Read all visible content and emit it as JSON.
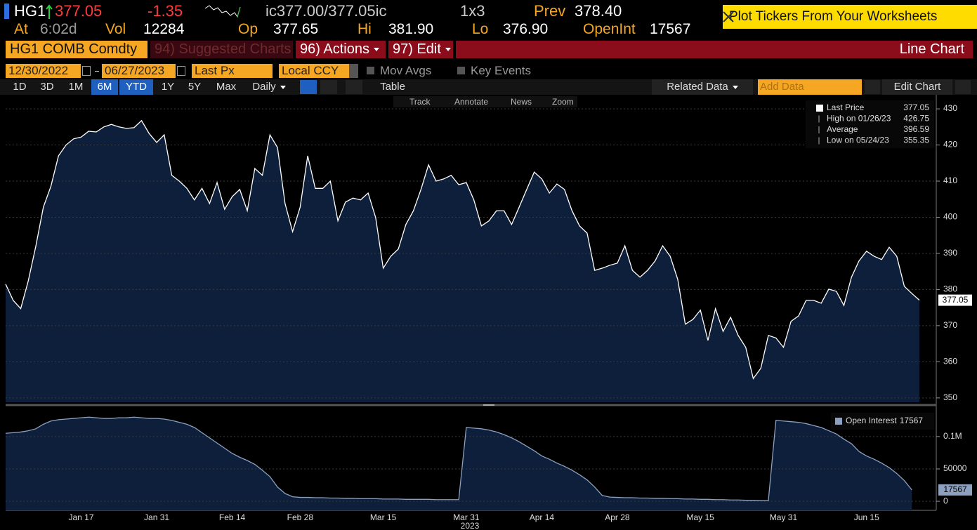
{
  "header": {
    "ticker": "HG1",
    "last": "377.05",
    "change": "-1.35",
    "quote": "ic377.00/377.05ic",
    "size": "1x3",
    "prev_label": "Prev",
    "prev": "378.40",
    "at_label": "At",
    "time": "6:02d",
    "vol_label": "Vol",
    "vol": "12284",
    "op_label": "Op",
    "op": "377.65",
    "hi_label": "Hi",
    "hi": "381.90",
    "lo_label": "Lo",
    "lo": "376.90",
    "oi_label": "OpenInt",
    "oi": "17567"
  },
  "banner": "Plot Tickers From Your Worksheets",
  "menu": {
    "security": "HG1 COMB Comdty",
    "suggested": "94) Suggested Charts",
    "actions": "96) Actions",
    "edit": "97) Edit",
    "chart_type": "Line Chart"
  },
  "controls": {
    "start_date": "12/30/2022",
    "end_date": "06/27/2023",
    "field": "Last Px",
    "currency": "Local CCY",
    "mov_avgs": "Mov Avgs",
    "key_events": "Key Events"
  },
  "periods": [
    "1D",
    "3D",
    "1M",
    "6M",
    "YTD",
    "1Y",
    "5Y",
    "Max"
  ],
  "frequency": "Daily",
  "table": "Table",
  "related_data": "Related Data",
  "add_data": "Add Data",
  "edit_chart": "Edit Chart",
  "tools": [
    "Track",
    "Annotate",
    "News",
    "Zoom"
  ],
  "chart_data": [
    {
      "type": "area",
      "series": [
        {
          "name": "Last Price",
          "color": "#ffffff",
          "fill": "#0d1f3b",
          "values": [
            381.5,
            377,
            374.7,
            382.4,
            392,
            402.8,
            408.6,
            417,
            420,
            421.7,
            422.2,
            423.8,
            423.6,
            425,
            425.7,
            425,
            424.6,
            424.8,
            426.75,
            423.2,
            420.7,
            422.8,
            411.6,
            410,
            408,
            404.8,
            408,
            403.8,
            409.6,
            402.2,
            405.7,
            407.7,
            401.8,
            413.5,
            411.6,
            422.8,
            419.3,
            403.8,
            396,
            402.8,
            417,
            408,
            408,
            410,
            399,
            404.2,
            405.3,
            404.8,
            406.7,
            399.9,
            385.9,
            389.2,
            391.2,
            398,
            401.8,
            407.7,
            414.5,
            410,
            410.6,
            411.6,
            409,
            409.6,
            404.8,
            397.6,
            399,
            401.8,
            401.8,
            398,
            402.8,
            407.7,
            412.5,
            410.6,
            406.7,
            409.2,
            407.7,
            401.8,
            397.6,
            395.6,
            385.3,
            385.9,
            386.7,
            387.3,
            392.1,
            385.3,
            383.4,
            385.3,
            387.9,
            392.1,
            389.2,
            382.8,
            370.4,
            371.7,
            374.3,
            365.9,
            374.7,
            368.4,
            372.3,
            367.3,
            364,
            355.35,
            358.2,
            367.3,
            366.6,
            364,
            371.2,
            372.7,
            377,
            377,
            376.2,
            380.1,
            379.5,
            375.6,
            383.4,
            387.9,
            390.6,
            389.2,
            388.3,
            391.7,
            389.2,
            380.9,
            378.9,
            377.05
          ]
        }
      ],
      "stats": [
        {
          "label": "High on 01/26/23",
          "value": 426.75
        },
        {
          "label": "Average",
          "value": 396.59
        },
        {
          "label": "Low on 05/24/23",
          "value": 355.35
        }
      ],
      "ylim": [
        348.8,
        433.9
      ],
      "yticks": [
        350,
        360,
        370,
        380,
        390,
        400,
        410,
        420,
        430
      ],
      "grid": true
    },
    {
      "type": "area",
      "categories": [
        null,
        null,
        null,
        null,
        null,
        null,
        null,
        null,
        null,
        null,
        "Jan 17",
        null,
        null,
        null,
        null,
        null,
        null,
        null,
        null,
        null,
        "Jan 31",
        null,
        null,
        null,
        null,
        null,
        null,
        null,
        null,
        null,
        "Feb 14",
        null,
        null,
        null,
        null,
        null,
        null,
        null,
        null,
        "Feb 28",
        null,
        null,
        null,
        null,
        null,
        null,
        null,
        null,
        null,
        null,
        "Mar 15",
        null,
        null,
        null,
        null,
        null,
        null,
        null,
        null,
        null,
        null,
        "Mar 31",
        null,
        null,
        null,
        null,
        null,
        null,
        null,
        null,
        null,
        "Apr 14",
        null,
        null,
        null,
        null,
        null,
        null,
        null,
        null,
        null,
        "Apr 28",
        null,
        null,
        null,
        null,
        null,
        null,
        null,
        null,
        null,
        null,
        "May 15",
        null,
        null,
        null,
        null,
        null,
        null,
        null,
        null,
        null,
        null,
        "May 31",
        null,
        null,
        null,
        null,
        null,
        null,
        null,
        null,
        null,
        null,
        "Jun 15",
        null,
        null,
        null,
        null,
        null,
        null,
        null
      ],
      "year_label": "2023",
      "series": [
        {
          "name": "Open Interest",
          "color": "#8da0c0",
          "fill": "#0d1f3b",
          "values": [
            105000,
            106000,
            107000,
            109000,
            112000,
            119000,
            124000,
            126000,
            127000,
            128000,
            129000,
            130000,
            129000,
            128000,
            128000,
            129000,
            129000,
            130000,
            129000,
            128000,
            128000,
            127000,
            125000,
            122000,
            119000,
            114000,
            106000,
            98000,
            90000,
            82000,
            74000,
            68000,
            63000,
            57000,
            48000,
            38000,
            22000,
            12000,
            7000,
            6000,
            6000,
            5500,
            5500,
            5000,
            5000,
            4500,
            4500,
            4000,
            4000,
            4000,
            3500,
            3500,
            3500,
            3000,
            3000,
            3000,
            3000,
            2500,
            2500,
            2500,
            2500,
            114000,
            113000,
            112000,
            110000,
            107000,
            103000,
            98000,
            92000,
            85000,
            78000,
            70000,
            65000,
            59000,
            54000,
            48000,
            41000,
            33000,
            22000,
            9000,
            6500,
            6000,
            5500,
            5500,
            5000,
            5000,
            4500,
            4500,
            4000,
            4000,
            3500,
            3500,
            3000,
            3000,
            2500,
            2500,
            2000,
            2000,
            1500,
            1500,
            1000,
            1000,
            125000,
            124000,
            123000,
            122000,
            120000,
            117000,
            114000,
            109000,
            104000,
            96000,
            89000,
            77000,
            70000,
            65000,
            59000,
            52000,
            43000,
            32000,
            17567,
            null
          ]
        }
      ],
      "ylim": [
        -14000,
        140000
      ],
      "yticks": [
        0,
        50000,
        {
          "value": 100000,
          "label": "0.1M"
        }
      ],
      "grid": true
    }
  ]
}
